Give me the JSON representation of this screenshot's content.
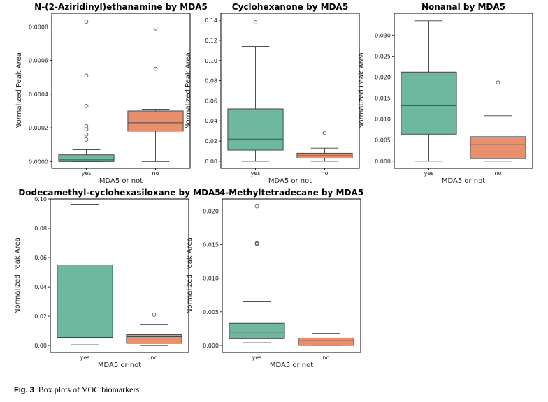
{
  "caption": {
    "label": "Fig. 3",
    "text": "Box plots of VOC biomarkers"
  },
  "colors": {
    "yes": "#6fb8a0",
    "no": "#e8906e",
    "median": "#4a4a4a",
    "whisker": "#3a3a3a",
    "flier": "#555555"
  },
  "chart_data": [
    {
      "type": "box",
      "title": "N-(2-Aziridinyl)ethanamine by MDA5",
      "xlabel": "MDA5 or not",
      "ylabel": "Normalized Peak Area",
      "ylim": [
        -4e-05,
        0.00088
      ],
      "yticks": [
        0,
        0.0002,
        0.0004,
        0.0006,
        0.0008
      ],
      "ytick_labels": [
        "0.0000",
        "0.0002",
        "0.0004",
        "0.0006",
        "0.0008"
      ],
      "categories": [
        "yes",
        "no"
      ],
      "boxes": [
        {
          "whislo": 0.0,
          "q1": 0.0,
          "med": 1e-05,
          "q3": 4e-05,
          "whishi": 7e-05,
          "fliers": [
            0.00013,
            0.00016,
            0.00019,
            0.00021,
            0.00033,
            0.00051,
            0.00083
          ]
        },
        {
          "whislo": 0.0,
          "q1": 0.00018,
          "med": 0.00023,
          "q3": 0.0003,
          "whishi": 0.00031,
          "fliers": [
            0.00055,
            0.00079
          ]
        }
      ]
    },
    {
      "type": "box",
      "title": "Cyclohexanone by MDA5",
      "xlabel": "MDA5 or not",
      "ylabel": "Normalized Peak Area",
      "ylim": [
        -0.007,
        0.147
      ],
      "yticks": [
        0,
        0.02,
        0.04,
        0.06,
        0.08,
        0.1,
        0.12,
        0.14
      ],
      "ytick_labels": [
        "0.00",
        "0.02",
        "0.04",
        "0.06",
        "0.08",
        "0.10",
        "0.12",
        "0.14"
      ],
      "categories": [
        "yes",
        "no"
      ],
      "boxes": [
        {
          "whislo": 0.0,
          "q1": 0.011,
          "med": 0.022,
          "q3": 0.052,
          "whishi": 0.114,
          "fliers": [
            0.138
          ]
        },
        {
          "whislo": 0.0,
          "q1": 0.003,
          "med": 0.0055,
          "q3": 0.008,
          "whishi": 0.013,
          "fliers": [
            0.028
          ]
        }
      ]
    },
    {
      "type": "box",
      "title": "Nonanal by MDA5",
      "xlabel": "MDA5 or not",
      "ylabel": "Normalized Peak Area",
      "ylim": [
        -0.0017,
        0.0352
      ],
      "yticks": [
        0,
        0.005,
        0.01,
        0.015,
        0.02,
        0.025,
        0.03
      ],
      "ytick_labels": [
        "0.000",
        "0.005",
        "0.010",
        "0.015",
        "0.020",
        "0.025",
        "0.030"
      ],
      "categories": [
        "yes",
        "no"
      ],
      "boxes": [
        {
          "whislo": 0.0,
          "q1": 0.0064,
          "med": 0.0132,
          "q3": 0.0212,
          "whishi": 0.0334,
          "fliers": []
        },
        {
          "whislo": 0.0,
          "q1": 0.0006,
          "med": 0.004,
          "q3": 0.0058,
          "whishi": 0.0108,
          "fliers": [
            0.0187
          ]
        }
      ]
    },
    {
      "type": "box",
      "title": "Dodecamethyl-cyclohexasiloxane by MDA5",
      "xlabel": "MDA5 or not",
      "ylabel": "Normalized Peak Area",
      "ylim": [
        -0.0047,
        0.1
      ],
      "yticks": [
        0,
        0.02,
        0.04,
        0.06,
        0.08,
        0.1
      ],
      "ytick_labels": [
        "0.00",
        "0.02",
        "0.04",
        "0.06",
        "0.08",
        "0.10"
      ],
      "categories": [
        "yes",
        "no"
      ],
      "boxes": [
        {
          "whislo": 0.0005,
          "q1": 0.0055,
          "med": 0.0255,
          "q3": 0.055,
          "whishi": 0.096,
          "fliers": []
        },
        {
          "whislo": 0.0,
          "q1": 0.0015,
          "med": 0.006,
          "q3": 0.0075,
          "whishi": 0.0145,
          "fliers": [
            0.021
          ]
        }
      ]
    },
    {
      "type": "box",
      "title": "4-Methyltetradecane by MDA5",
      "xlabel": "MDA5 or not",
      "ylabel": "Normalized Peak Area",
      "ylim": [
        -0.00104,
        0.0218
      ],
      "yticks": [
        0,
        0.005,
        0.01,
        0.015,
        0.02
      ],
      "ytick_labels": [
        "0.000",
        "0.005",
        "0.010",
        "0.015",
        "0.020"
      ],
      "categories": [
        "yes",
        "no"
      ],
      "boxes": [
        {
          "whislo": 0.0004,
          "q1": 0.001,
          "med": 0.002,
          "q3": 0.0033,
          "whishi": 0.0065,
          "fliers": [
            0.0151,
            0.0152,
            0.0207
          ]
        },
        {
          "whislo": 0.0,
          "q1": 0.0,
          "med": 0.0007,
          "q3": 0.0011,
          "whishi": 0.0018,
          "fliers": []
        }
      ]
    }
  ]
}
